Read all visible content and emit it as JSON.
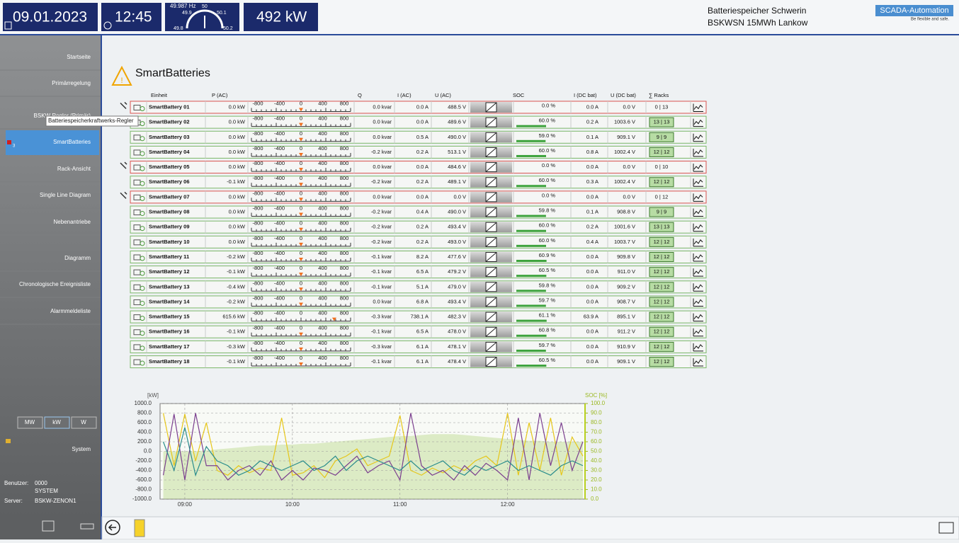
{
  "header": {
    "date": "09.01.2023",
    "time": "12:45",
    "frequency": "49.987 Hz",
    "gauge_labels": [
      "49.9",
      "50",
      "50.1",
      "49.8",
      "50.2"
    ],
    "power": "492 kW",
    "plant_name": "Batteriespeicher Schwerin",
    "plant_id": "BSKWSN 15MWh Lankow",
    "logo": "SCADA-Automation",
    "slogan": "Be flexible and safe."
  },
  "sidebar": {
    "menu": [
      "Startseite",
      "Primärregelung",
      "BSKW Regler (Primär)",
      "SmartBatteries",
      "Rack-Ansicht",
      "Single Line Diagram",
      "Nebenantriebe",
      "Diagramm",
      "Chronologische Ereignisliste",
      "Alarmmeldeliste"
    ],
    "active": "SmartBatteries",
    "badge": "3",
    "tooltip": "Batteriespeicherkraftwerks-Regler",
    "units": [
      "MW",
      "kW",
      "W"
    ],
    "system": "System",
    "user_label": "Benutzer:",
    "user_id": "0000",
    "user_name": "SYSTEM",
    "server_label": "Server:",
    "server": "BSKW-ZENON1"
  },
  "page_title": "SmartBatteries",
  "table": {
    "columns": [
      "Einheit",
      "P (AC)",
      "Q",
      "I (AC)",
      "U (AC)",
      "SOC",
      "I (DC bat)",
      "U (DC bat)",
      "∑ Racks"
    ],
    "scale_labels": [
      -800,
      -400,
      0,
      400,
      800
    ],
    "rows": [
      {
        "name": "SmartBattery 01",
        "p": "0.0 kW",
        "q": "0.0 kvar",
        "i": "0.0 A",
        "u": "488.5 V",
        "soc": "0.0 %",
        "idc": "0.0 A",
        "udc": "0.0 V",
        "racks": "0 | 13",
        "fault": true
      },
      {
        "name": "SmartBattery 02",
        "p": "0.0 kW",
        "q": "0.0 kvar",
        "i": "0.0 A",
        "u": "489.6 V",
        "soc": "60.0 %",
        "idc": "0.2 A",
        "udc": "1003.6 V",
        "racks": "13 | 13",
        "fault": false
      },
      {
        "name": "SmartBattery 03",
        "p": "0.0 kW",
        "q": "0.0 kvar",
        "i": "0.5 A",
        "u": "490.0 V",
        "soc": "59.0 %",
        "idc": "0.1 A",
        "udc": "909.1 V",
        "racks": "9 | 9",
        "fault": false
      },
      {
        "name": "SmartBattery 04",
        "p": "0.0 kW",
        "q": "-0.2 kvar",
        "i": "0.2 A",
        "u": "513.1 V",
        "soc": "60.0 %",
        "idc": "0.8 A",
        "udc": "1002.4 V",
        "racks": "12 | 12",
        "fault": false
      },
      {
        "name": "SmartBattery 05",
        "p": "0.0 kW",
        "q": "0.0 kvar",
        "i": "0.0 A",
        "u": "484.6 V",
        "soc": "0.0 %",
        "idc": "0.0 A",
        "udc": "0.0 V",
        "racks": "0 | 10",
        "fault": true
      },
      {
        "name": "SmartBattery 06",
        "p": "-0.1 kW",
        "q": "-0.2 kvar",
        "i": "0.2 A",
        "u": "489.1 V",
        "soc": "60.0 %",
        "idc": "0.3 A",
        "udc": "1002.4 V",
        "racks": "12 | 12",
        "fault": false
      },
      {
        "name": "SmartBattery 07",
        "p": "0.0 kW",
        "q": "0.0 kvar",
        "i": "0.0 A",
        "u": "0.0 V",
        "soc": "0.0 %",
        "idc": "0.0 A",
        "udc": "0.0 V",
        "racks": "0 | 12",
        "fault": true
      },
      {
        "name": "SmartBattery 08",
        "p": "0.0 kW",
        "q": "-0.2 kvar",
        "i": "0.4 A",
        "u": "490.0 V",
        "soc": "59.8 %",
        "idc": "0.1 A",
        "udc": "908.8 V",
        "racks": "9 | 9",
        "fault": false
      },
      {
        "name": "SmartBattery 09",
        "p": "0.0 kW",
        "q": "-0.2 kvar",
        "i": "0.2 A",
        "u": "493.4 V",
        "soc": "60.0 %",
        "idc": "0.2 A",
        "udc": "1001.6 V",
        "racks": "13 | 13",
        "fault": false
      },
      {
        "name": "SmartBattery 10",
        "p": "0.0 kW",
        "q": "-0.2 kvar",
        "i": "0.2 A",
        "u": "493.0 V",
        "soc": "60.0 %",
        "idc": "0.4 A",
        "udc": "1003.7 V",
        "racks": "12 | 12",
        "fault": false
      },
      {
        "name": "SmartBattery 11",
        "p": "-0.2 kW",
        "q": "-0.1 kvar",
        "i": "8.2 A",
        "u": "477.6 V",
        "soc": "60.9 %",
        "idc": "0.0 A",
        "udc": "909.8 V",
        "racks": "12 | 12",
        "fault": false
      },
      {
        "name": "SmartBattery 12",
        "p": "-0.1 kW",
        "q": "-0.1 kvar",
        "i": "6.5 A",
        "u": "479.2 V",
        "soc": "60.5 %",
        "idc": "0.0 A",
        "udc": "911.0 V",
        "racks": "12 | 12",
        "fault": false
      },
      {
        "name": "SmartBattery 13",
        "p": "-0.4 kW",
        "q": "-0.1 kvar",
        "i": "5.1 A",
        "u": "479.0 V",
        "soc": "59.8 %",
        "idc": "0.0 A",
        "udc": "909.2 V",
        "racks": "12 | 12",
        "fault": false
      },
      {
        "name": "SmartBattery 14",
        "p": "-0.2 kW",
        "q": "0.0 kvar",
        "i": "6.8 A",
        "u": "493.4 V",
        "soc": "59.7 %",
        "idc": "0.0 A",
        "udc": "908.7 V",
        "racks": "12 | 12",
        "fault": false
      },
      {
        "name": "SmartBattery 15",
        "p": "615.6 kW",
        "q": "-0.3 kvar",
        "i": "738.1 A",
        "u": "482.3 V",
        "soc": "61.1 %",
        "idc": "63.9 A",
        "udc": "895.1 V",
        "racks": "12 | 12",
        "fault": false
      },
      {
        "name": "SmartBattery 16",
        "p": "-0.1 kW",
        "q": "-0.1 kvar",
        "i": "6.5 A",
        "u": "478.0 V",
        "soc": "60.8 %",
        "idc": "0.0 A",
        "udc": "911.2 V",
        "racks": "12 | 12",
        "fault": false
      },
      {
        "name": "SmartBattery 17",
        "p": "-0.3 kW",
        "q": "-0.3 kvar",
        "i": "6.1 A",
        "u": "478.1 V",
        "soc": "59.7 %",
        "idc": "0.0 A",
        "udc": "910.9 V",
        "racks": "12 | 12",
        "fault": false
      },
      {
        "name": "SmartBattery 18",
        "p": "-0.1 kW",
        "q": "-0.1 kvar",
        "i": "6.1 A",
        "u": "478.4 V",
        "soc": "60.5 %",
        "idc": "0.0 A",
        "udc": "909.1 V",
        "racks": "12 | 12",
        "fault": false
      }
    ]
  },
  "chart_data": {
    "type": "line",
    "ylabel": "[kW]",
    "y2label": "SOC [%]",
    "x": [
      8.8,
      8.9,
      9.0,
      9.1,
      9.2,
      9.3,
      9.4,
      9.5,
      9.6,
      9.7,
      9.8,
      9.9,
      10.0,
      10.1,
      10.2,
      10.3,
      10.4,
      10.5,
      10.6,
      10.7,
      10.8,
      10.9,
      11.0,
      11.1,
      11.2,
      11.3,
      11.4,
      11.5,
      11.6,
      11.7,
      11.8,
      11.9,
      12.0,
      12.1,
      12.2,
      12.3,
      12.4,
      12.5,
      12.6,
      12.7
    ],
    "xlim": [
      8.77,
      12.72
    ],
    "xticks": [
      {
        "value": 9,
        "label": "09:00"
      },
      {
        "value": 10,
        "label": "10:00"
      },
      {
        "value": 11,
        "label": "11:00"
      },
      {
        "value": 12,
        "label": "12:00"
      }
    ],
    "ylim": [
      -1000,
      1000
    ],
    "yticks": [
      {
        "value": 1000,
        "label": "1000.0"
      },
      {
        "value": 800,
        "label": "800.0"
      },
      {
        "value": 600,
        "label": "600.0"
      },
      {
        "value": 400,
        "label": "400.0"
      },
      {
        "value": 200,
        "label": "200.0"
      },
      {
        "value": 0,
        "label": "0.0"
      },
      {
        "value": -200,
        "label": "-200.0"
      },
      {
        "value": -400,
        "label": "-400.0"
      },
      {
        "value": -600,
        "label": "-600.0"
      },
      {
        "value": -800,
        "label": "-800.0"
      },
      {
        "value": -1000,
        "label": "-1000.0"
      }
    ],
    "y2lim": [
      0,
      100
    ],
    "y2ticks": [
      {
        "value": 0,
        "label": "0.0"
      },
      {
        "value": 10,
        "label": "10.0"
      },
      {
        "value": 20,
        "label": "20.0"
      },
      {
        "value": 30,
        "label": "30.0"
      },
      {
        "value": 40,
        "label": "40.0"
      },
      {
        "value": 50,
        "label": "50.0"
      },
      {
        "value": 60,
        "label": "60.0"
      },
      {
        "value": 70,
        "label": "70.0"
      },
      {
        "value": 80,
        "label": "80.0"
      },
      {
        "value": 90,
        "label": "90.0"
      },
      {
        "value": 100,
        "label": "100.0"
      }
    ],
    "grid": true,
    "series": [
      {
        "color": "#a8cf6a",
        "axis": "y2",
        "values": [
          50,
          50,
          50,
          50,
          51,
          52,
          53,
          54,
          55,
          56,
          56,
          57,
          57,
          58,
          58,
          59,
          60,
          61,
          62,
          63,
          64,
          65,
          66,
          66,
          67,
          68,
          68,
          68,
          67,
          66,
          65,
          64,
          63,
          62,
          61,
          61,
          60,
          60,
          60,
          60
        ]
      },
      {
        "color": "#e6c619",
        "values": [
          800,
          -300,
          780,
          -200,
          600,
          -400,
          -500,
          -300,
          -450,
          -350,
          -400,
          700,
          -500,
          -450,
          -300,
          -550,
          -200,
          -100,
          50,
          -300,
          -200,
          -100,
          750,
          -400,
          -500,
          -350,
          -450,
          -300,
          -400,
          -200,
          -100,
          -300,
          800,
          -500,
          600,
          -400,
          700,
          -500,
          300,
          -100
        ]
      },
      {
        "color": "#7b3f8f",
        "values": [
          -500,
          780,
          -600,
          800,
          -300,
          -300,
          -600,
          -400,
          -300,
          -500,
          -200,
          -600,
          -400,
          -600,
          -350,
          -400,
          -500,
          -300,
          -100,
          -450,
          -300,
          -200,
          -600,
          800,
          -300,
          -500,
          -400,
          -600,
          -300,
          -500,
          -250,
          -400,
          -600,
          700,
          -600,
          800,
          -300,
          600,
          -400,
          200
        ]
      },
      {
        "color": "#2a8c8c",
        "values": [
          200,
          -400,
          500,
          -500,
          100,
          -200,
          -300,
          -500,
          -400,
          -200,
          -300,
          -400,
          -300,
          -200,
          -400,
          -300,
          -100,
          -400,
          -200,
          -100,
          -200,
          -300,
          -400,
          -200,
          -400,
          -300,
          -200,
          -400,
          -500,
          -300,
          -400,
          -300,
          -200,
          -400,
          -300,
          -400,
          -500,
          -300,
          -200,
          -300
        ]
      }
    ]
  }
}
